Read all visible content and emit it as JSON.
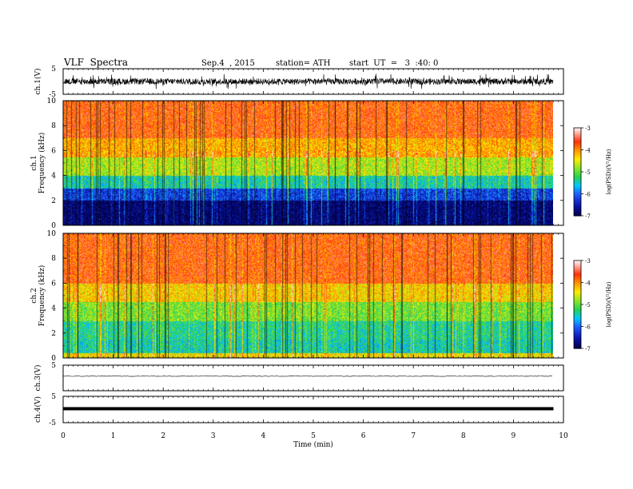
{
  "header": {
    "title": "VLF  Spectra",
    "date": "Sep.4  , 2015",
    "station": "station= ATH",
    "start": "start  UT  =   3  :40: 0"
  },
  "chart_data": [
    {
      "type": "line",
      "panel": "waveform",
      "ylabel": "ch.1(V)",
      "ylim": [
        -5,
        5
      ],
      "y_ticks": [
        "5",
        "-5"
      ],
      "amplitude_approx": 1.2
    },
    {
      "type": "heatmap",
      "panel": "spectrogram",
      "ylabel": "ch.1\nFrequency (kHz)",
      "ylim": [
        0,
        10
      ],
      "y_ticks": [
        "10",
        "8",
        "6",
        "4",
        "2",
        "0"
      ],
      "colorbar": {
        "label": "log(PSD)(V²/Hz)",
        "range": [
          -7,
          -3
        ],
        "ticks": [
          "-3",
          "-4",
          "-5",
          "-6",
          "-7"
        ]
      },
      "description_levels": {
        "0-2kHz": -6.7,
        "2-4kHz": -5.5,
        "4-6kHz": -4.5,
        "6-10kHz": -3.6
      }
    },
    {
      "type": "heatmap",
      "panel": "spectrogram",
      "ylabel": "ch.2\nFrequency (kHz)",
      "ylim": [
        0,
        10
      ],
      "y_ticks": [
        "10",
        "8",
        "6",
        "4",
        "2",
        "0"
      ],
      "colorbar": {
        "label": "log(PSD)(V²/Hz)",
        "range": [
          -7,
          -3
        ],
        "ticks": [
          "-3",
          "-4",
          "-5",
          "-6",
          "-7"
        ]
      },
      "description_levels": {
        "0-1kHz": -4.5,
        "1-4kHz": -5.2,
        "4-6kHz": -4.4,
        "6-10kHz": -3.5
      }
    },
    {
      "type": "line",
      "panel": "waveform",
      "ylabel": "ch.3(V)",
      "ylim": [
        -5,
        5
      ],
      "y_ticks": [
        "5"
      ],
      "amplitude_approx": 0.05
    },
    {
      "type": "line",
      "panel": "waveform",
      "ylabel": "ch.4(V)",
      "ylim": [
        -5,
        5
      ],
      "y_ticks": [
        "5",
        "-5"
      ],
      "amplitude_approx": 0.1
    }
  ],
  "x_axis": {
    "label": "Time  (min)",
    "range": [
      0,
      10
    ],
    "ticks": [
      "0",
      "1",
      "2",
      "3",
      "4",
      "5",
      "6",
      "7",
      "8",
      "9",
      "10"
    ],
    "data_end": 9.8
  },
  "colors": {
    "red": "#ff2a00",
    "orange": "#ff9900",
    "yellow": "#ffee00",
    "green": "#33cc33",
    "cyan": "#00ccff",
    "blue": "#1a3cff",
    "navy": "#000066",
    "black": "#000000"
  }
}
